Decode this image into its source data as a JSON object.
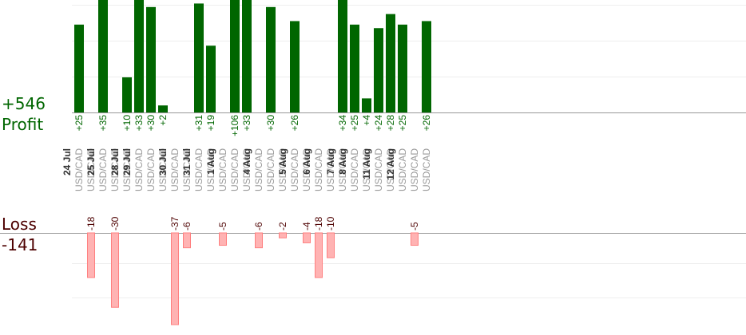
{
  "summary": {
    "profit_total": "+546",
    "profit_label": "Profit",
    "loss_label": "Loss",
    "loss_total": "-141"
  },
  "colors": {
    "profit_bar": "#006600",
    "loss_bar": "#ffb3b3",
    "loss_bar_border": "#ff8080",
    "profit_text": "#006600",
    "loss_text": "#4d0000",
    "date_text": "#333333",
    "pair_text": "#999999",
    "grid": "#eeeeee",
    "baseline": "#999999"
  },
  "chart_data": {
    "type": "bar",
    "x": [
      "24 Jul",
      "25 Jul",
      "28 Jul",
      "29 Jul",
      "30 Jul",
      "31 Jul",
      "1 Aug",
      "4 Aug",
      "5 Aug",
      "6 Aug",
      "7 Aug",
      "8 Aug",
      "11 Aug",
      "12 Aug"
    ],
    "groups": [
      {
        "date": "24 Jul",
        "trades": [
          {
            "pair": "USD/CAD",
            "value": 25
          },
          {
            "pair": "USD/CAD",
            "value": -18
          }
        ]
      },
      {
        "date": "25 Jul",
        "trades": [
          {
            "pair": "USD/CAD",
            "value": 35
          },
          {
            "pair": "USD/CAD",
            "value": -30
          }
        ]
      },
      {
        "date": "28 Jul",
        "trades": [
          {
            "pair": "USD/CAD",
            "value": 10
          }
        ]
      },
      {
        "date": "29 Jul",
        "trades": [
          {
            "pair": "USD/CAD",
            "value": 33
          },
          {
            "pair": "USD/CAD",
            "value": 30
          },
          {
            "pair": "USD/CAD",
            "value": 2
          }
        ]
      },
      {
        "date": "30 Jul",
        "trades": [
          {
            "pair": "USD/CAD",
            "value": -37
          },
          {
            "pair": "USD/CAD",
            "value": -6
          }
        ]
      },
      {
        "date": "31 Jul",
        "trades": [
          {
            "pair": "USD/CAD",
            "value": 31
          },
          {
            "pair": "USD/CAD",
            "value": 19
          }
        ]
      },
      {
        "date": "1 Aug",
        "trades": [
          {
            "pair": "USD/CAD",
            "value": -5
          },
          {
            "pair": "USD/CAD",
            "value": 106
          },
          {
            "pair": "USD/CAD",
            "value": 33
          }
        ]
      },
      {
        "date": "4 Aug",
        "trades": [
          {
            "pair": "USD/CAD",
            "value": -6
          },
          {
            "pair": "USD/CAD",
            "value": 30
          },
          {
            "pair": "USD/CAD",
            "value": -2
          }
        ]
      },
      {
        "date": "5 Aug",
        "trades": [
          {
            "pair": "USD/CAD",
            "value": 26
          },
          {
            "pair": "USD/CAD",
            "value": -4
          }
        ]
      },
      {
        "date": "6 Aug",
        "trades": [
          {
            "pair": "USD/CAD",
            "value": -18
          },
          {
            "pair": "USD/CAD",
            "value": -10
          }
        ]
      },
      {
        "date": "7 Aug",
        "trades": [
          {
            "pair": "USD/CAD",
            "value": 34
          }
        ]
      },
      {
        "date": "8 Aug",
        "trades": [
          {
            "pair": "USD/CAD",
            "value": 25
          },
          {
            "pair": "USD/CAD",
            "value": 4
          }
        ]
      },
      {
        "date": "11 Aug",
        "trades": [
          {
            "pair": "USD/CAD",
            "value": 24
          },
          {
            "pair": "USD/CAD",
            "value": 28
          }
        ]
      },
      {
        "date": "12 Aug",
        "trades": [
          {
            "pair": "USD/CAD",
            "value": 25
          },
          {
            "pair": "USD/CAD",
            "value": -5
          },
          {
            "pair": "USD/CAD",
            "value": 26
          }
        ]
      }
    ],
    "profit_axis": {
      "ylim": [
        0,
        32
      ],
      "grid": true
    },
    "loss_axis": {
      "ylim": [
        -37,
        0
      ],
      "grid": true
    },
    "legend": "none"
  }
}
